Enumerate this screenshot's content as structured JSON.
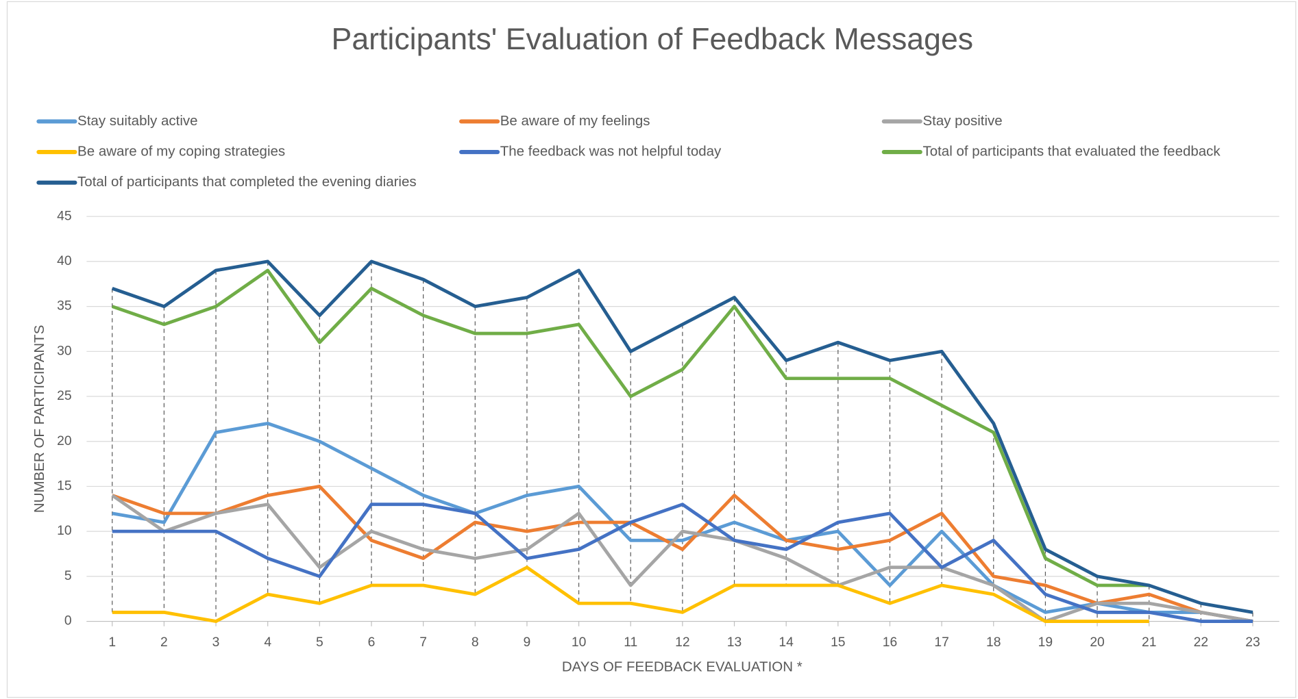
{
  "chart_data": {
    "type": "line",
    "title": "Participants' Evaluation of Feedback Messages",
    "x_label": "DAYS  OF FEEDBACK EVALUATION *",
    "y_label": "NUMBER OF PARTICIPANTS",
    "categories": [
      "1",
      "2",
      "3",
      "4",
      "5",
      "6",
      "7",
      "8",
      "9",
      "10",
      "11",
      "12",
      "13",
      "14",
      "15",
      "16",
      "17",
      "18",
      "19",
      "20",
      "21",
      "22",
      "23"
    ],
    "ylim": [
      0,
      45
    ],
    "yticks": [
      0,
      5,
      10,
      15,
      20,
      25,
      30,
      35,
      40,
      45
    ],
    "grid": true,
    "drop_lines": true,
    "series": [
      {
        "name": "Stay suitably active",
        "color": "#5b9bd5",
        "values": [
          12,
          11,
          21,
          22,
          20,
          17,
          14,
          12,
          14,
          15,
          9,
          9,
          11,
          9,
          10,
          4,
          10,
          4,
          1,
          2,
          1,
          1,
          0
        ]
      },
      {
        "name": "Be aware of my feelings",
        "color": "#ed7d31",
        "values": [
          14,
          12,
          12,
          14,
          15,
          9,
          7,
          11,
          10,
          11,
          11,
          8,
          14,
          9,
          8,
          9,
          12,
          5,
          4,
          2,
          3,
          1,
          0
        ]
      },
      {
        "name": "Stay positive",
        "color": "#a5a5a5",
        "values": [
          14,
          10,
          12,
          13,
          6,
          10,
          8,
          7,
          8,
          12,
          4,
          10,
          9,
          7,
          4,
          6,
          6,
          4,
          0,
          2,
          2,
          1,
          0
        ]
      },
      {
        "name": "Be aware of my coping strategies",
        "color": "#ffc000",
        "values": [
          1,
          1,
          0,
          3,
          2,
          4,
          4,
          3,
          6,
          2,
          2,
          1,
          4,
          4,
          4,
          2,
          4,
          3,
          0,
          0,
          0,
          null,
          null
        ]
      },
      {
        "name": "The feedback was not helpful today",
        "color": "#4472c4",
        "values": [
          10,
          10,
          10,
          7,
          5,
          13,
          13,
          12,
          7,
          8,
          11,
          13,
          9,
          8,
          11,
          12,
          6,
          9,
          3,
          1,
          1,
          0,
          0
        ]
      },
      {
        "name": "Total of participants that evaluated the feedback",
        "color": "#70ad47",
        "values": [
          35,
          33,
          35,
          39,
          31,
          37,
          34,
          32,
          32,
          33,
          25,
          28,
          35,
          27,
          27,
          27,
          24,
          21,
          7,
          4,
          4,
          null,
          null
        ]
      },
      {
        "name": "Total of participants that completed the evening diaries",
        "color": "#255e91",
        "values": [
          37,
          35,
          39,
          40,
          34,
          40,
          38,
          35,
          36,
          39,
          30,
          33,
          36,
          29,
          31,
          29,
          30,
          22,
          8,
          5,
          4,
          2,
          1
        ]
      }
    ]
  }
}
